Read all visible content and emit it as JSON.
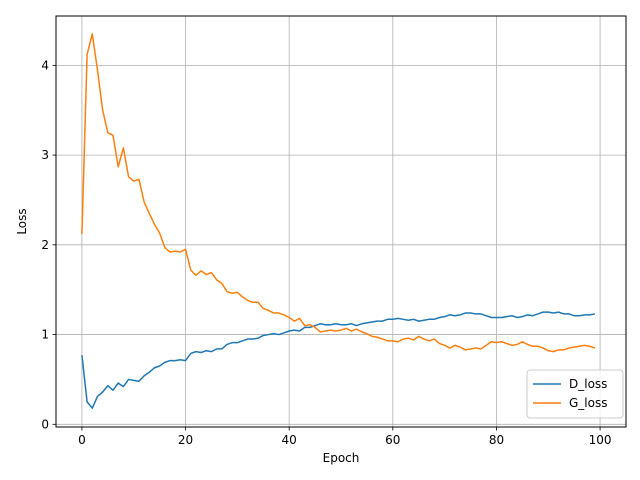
{
  "chart_data": {
    "type": "line",
    "title": "",
    "xlabel": "Epoch",
    "ylabel": "Loss",
    "xlim": [
      -5,
      105
    ],
    "ylim": [
      -0.03,
      4.55
    ],
    "xticks": [
      0,
      20,
      40,
      60,
      80,
      100
    ],
    "yticks": [
      0,
      1,
      2,
      3,
      4
    ],
    "grid": true,
    "legend": "lower-right",
    "x": [
      0,
      1,
      2,
      3,
      4,
      5,
      6,
      7,
      8,
      9,
      10,
      11,
      12,
      13,
      14,
      15,
      16,
      17,
      18,
      19,
      20,
      21,
      22,
      23,
      24,
      25,
      26,
      27,
      28,
      29,
      30,
      31,
      32,
      33,
      34,
      35,
      36,
      37,
      38,
      39,
      40,
      41,
      42,
      43,
      44,
      45,
      46,
      47,
      48,
      49,
      50,
      51,
      52,
      53,
      54,
      55,
      56,
      57,
      58,
      59,
      60,
      61,
      62,
      63,
      64,
      65,
      66,
      67,
      68,
      69,
      70,
      71,
      72,
      73,
      74,
      75,
      76,
      77,
      78,
      79,
      80,
      81,
      82,
      83,
      84,
      85,
      86,
      87,
      88,
      89,
      90,
      91,
      92,
      93,
      94,
      95,
      96,
      97,
      98,
      99
    ],
    "series": [
      {
        "name": "D_loss",
        "color": "#1f77b4",
        "values": [
          0.77,
          0.25,
          0.18,
          0.31,
          0.36,
          0.43,
          0.38,
          0.46,
          0.42,
          0.5,
          0.49,
          0.48,
          0.54,
          0.58,
          0.63,
          0.65,
          0.69,
          0.71,
          0.71,
          0.72,
          0.71,
          0.79,
          0.81,
          0.8,
          0.82,
          0.81,
          0.84,
          0.84,
          0.89,
          0.91,
          0.91,
          0.93,
          0.95,
          0.95,
          0.96,
          0.99,
          1.0,
          1.01,
          1.0,
          1.02,
          1.04,
          1.05,
          1.04,
          1.08,
          1.08,
          1.1,
          1.12,
          1.11,
          1.11,
          1.12,
          1.11,
          1.11,
          1.12,
          1.1,
          1.12,
          1.13,
          1.14,
          1.15,
          1.15,
          1.17,
          1.17,
          1.18,
          1.17,
          1.16,
          1.17,
          1.15,
          1.16,
          1.17,
          1.17,
          1.19,
          1.2,
          1.22,
          1.21,
          1.22,
          1.24,
          1.24,
          1.23,
          1.23,
          1.21,
          1.19,
          1.19,
          1.19,
          1.2,
          1.21,
          1.19,
          1.2,
          1.22,
          1.21,
          1.23,
          1.25,
          1.25,
          1.24,
          1.25,
          1.23,
          1.23,
          1.21,
          1.21,
          1.22,
          1.22,
          1.23
        ]
      },
      {
        "name": "G_loss",
        "color": "#ff7f0e",
        "values": [
          2.12,
          4.12,
          4.35,
          3.95,
          3.5,
          3.25,
          3.22,
          2.87,
          3.08,
          2.76,
          2.71,
          2.73,
          2.48,
          2.35,
          2.23,
          2.13,
          1.97,
          1.92,
          1.93,
          1.92,
          1.95,
          1.72,
          1.66,
          1.71,
          1.67,
          1.69,
          1.61,
          1.57,
          1.48,
          1.46,
          1.47,
          1.42,
          1.38,
          1.36,
          1.36,
          1.29,
          1.27,
          1.24,
          1.24,
          1.22,
          1.19,
          1.15,
          1.18,
          1.1,
          1.11,
          1.08,
          1.03,
          1.04,
          1.05,
          1.04,
          1.05,
          1.07,
          1.04,
          1.06,
          1.03,
          1.01,
          0.98,
          0.97,
          0.95,
          0.93,
          0.93,
          0.92,
          0.95,
          0.96,
          0.94,
          0.98,
          0.95,
          0.93,
          0.95,
          0.9,
          0.88,
          0.85,
          0.88,
          0.86,
          0.83,
          0.84,
          0.85,
          0.84,
          0.88,
          0.92,
          0.91,
          0.92,
          0.9,
          0.88,
          0.89,
          0.92,
          0.89,
          0.87,
          0.87,
          0.85,
          0.82,
          0.81,
          0.83,
          0.83,
          0.85,
          0.86,
          0.87,
          0.88,
          0.87,
          0.85
        ]
      }
    ]
  }
}
